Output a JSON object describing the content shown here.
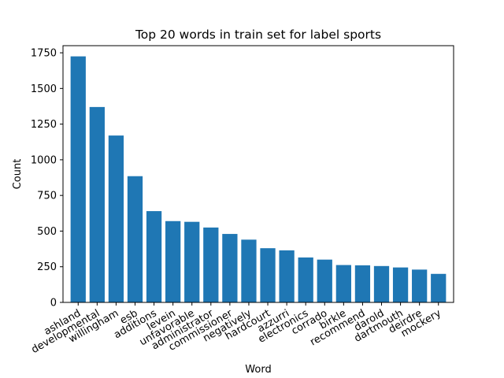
{
  "chart_data": {
    "type": "bar",
    "title": "Top 20 words in train set for label sports",
    "xlabel": "Word",
    "ylabel": "Count",
    "ylim": [
      0,
      1800
    ],
    "yticks": [
      0,
      250,
      500,
      750,
      1000,
      1250,
      1500,
      1750
    ],
    "grid": false,
    "bar_color": "#1f77b4",
    "categories": [
      "ashland",
      "developmental",
      "willingham",
      "esb",
      "additions",
      "levein",
      "unfavorable",
      "administrator",
      "commissioner",
      "negatively",
      "hardcourt",
      "azzurri",
      "electronics",
      "corrado",
      "birkle",
      "recommend",
      "darold",
      "dartmouth",
      "deirdre",
      "mockery"
    ],
    "values": [
      1725,
      1370,
      1170,
      885,
      640,
      570,
      565,
      525,
      480,
      440,
      380,
      365,
      315,
      300,
      262,
      260,
      255,
      245,
      230,
      200
    ]
  }
}
